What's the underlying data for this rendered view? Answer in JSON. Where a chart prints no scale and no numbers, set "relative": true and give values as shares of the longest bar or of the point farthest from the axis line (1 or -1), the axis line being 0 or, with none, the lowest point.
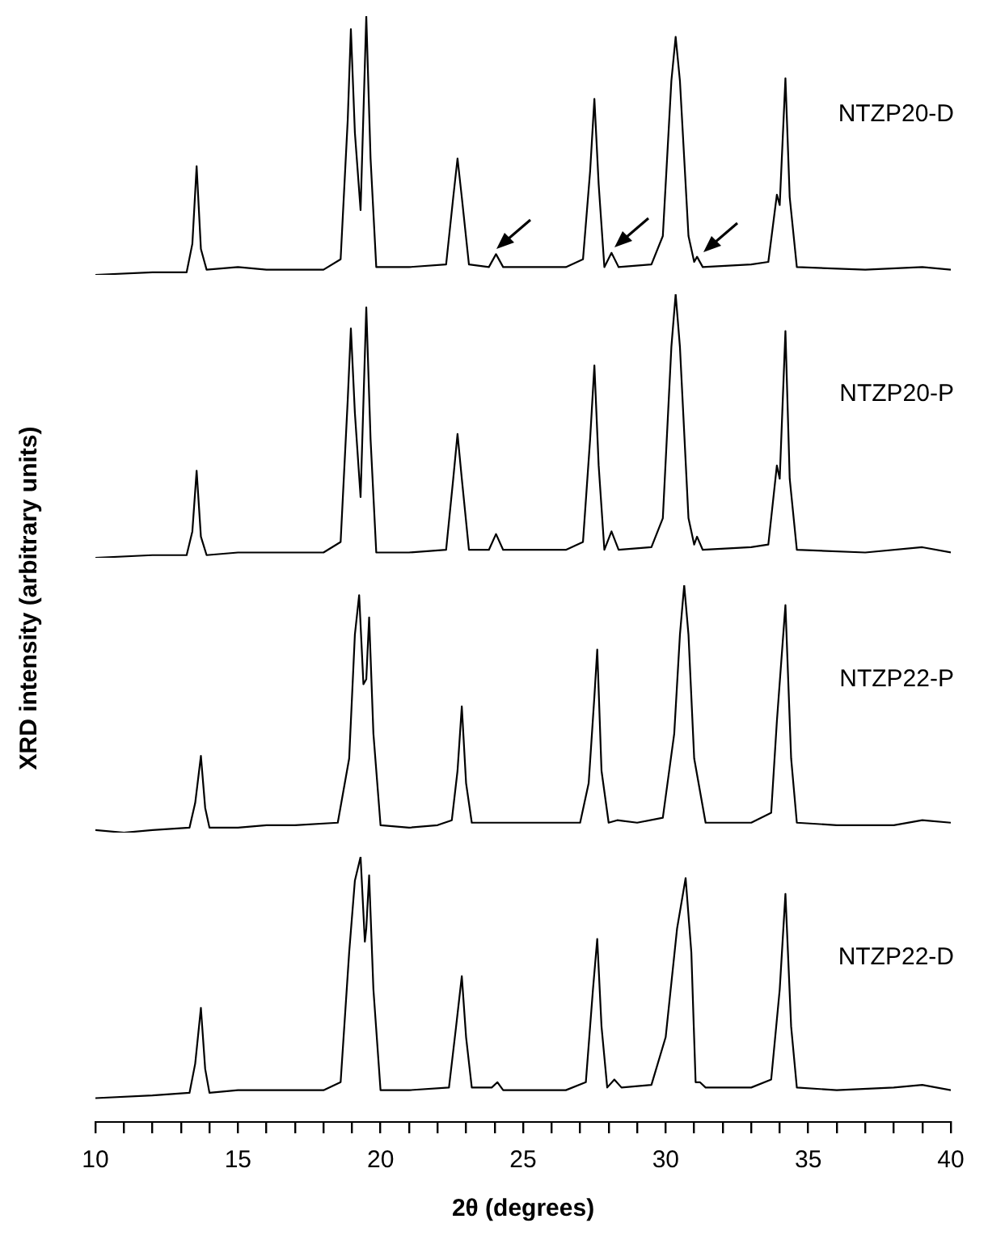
{
  "chart_data": [
    {
      "type": "line",
      "relative": true,
      "xlim": [
        10,
        40
      ],
      "tick_labels": false,
      "marker": "none",
      "series": [
        {
          "name": "NTZP20-D",
          "color": "#000000",
          "x": [
            10,
            12,
            13.2,
            13.4,
            13.55,
            13.7,
            13.9,
            15,
            16,
            18,
            18.6,
            18.85,
            18.96,
            19.1,
            19.3,
            19.5,
            19.65,
            19.85,
            21,
            22.3,
            22.55,
            22.7,
            22.85,
            23.1,
            23.8,
            24.05,
            24.3,
            26.5,
            27.1,
            27.35,
            27.5,
            27.65,
            27.85,
            28.1,
            28.35,
            29.5,
            29.9,
            30.2,
            30.35,
            30.5,
            30.8,
            31.0,
            31.1,
            31.3,
            33.0,
            33.6,
            33.9,
            34.0,
            34.2,
            34.35,
            34.6,
            37,
            39,
            40
          ],
          "values": [
            0,
            0.01,
            0.01,
            0.12,
            0.42,
            0.1,
            0.02,
            0.03,
            0.02,
            0.02,
            0.06,
            0.6,
            0.95,
            0.55,
            0.25,
            1,
            0.45,
            0.03,
            0.03,
            0.04,
            0.3,
            0.45,
            0.3,
            0.04,
            0.03,
            0.08,
            0.03,
            0.03,
            0.06,
            0.4,
            0.68,
            0.35,
            0.03,
            0.085,
            0.03,
            0.04,
            0.15,
            0.75,
            0.92,
            0.75,
            0.15,
            0.05,
            0.07,
            0.03,
            0.04,
            0.05,
            0.31,
            0.27,
            0.76,
            0.3,
            0.03,
            0.02,
            0.03,
            0.02
          ]
        }
      ]
    },
    {
      "type": "line",
      "relative": true,
      "xlim": [
        10,
        40
      ],
      "tick_labels": false,
      "marker": "none",
      "series": [
        {
          "name": "NTZP20-P",
          "color": "#000000",
          "x": [
            10,
            12,
            13.2,
            13.4,
            13.55,
            13.7,
            13.9,
            15,
            16,
            18,
            18.6,
            18.85,
            18.96,
            19.1,
            19.3,
            19.5,
            19.65,
            19.85,
            21,
            22.3,
            22.55,
            22.7,
            22.85,
            23.1,
            23.8,
            24.05,
            24.3,
            26.5,
            27.1,
            27.35,
            27.5,
            27.65,
            27.85,
            28.1,
            28.35,
            29.5,
            29.9,
            30.2,
            30.35,
            30.5,
            30.8,
            31.0,
            31.1,
            31.3,
            33.0,
            33.6,
            33.9,
            34.0,
            34.2,
            34.35,
            34.6,
            37,
            39,
            40
          ],
          "values": [
            0,
            0.01,
            0.01,
            0.1,
            0.33,
            0.08,
            0.01,
            0.02,
            0.02,
            0.02,
            0.06,
            0.6,
            0.87,
            0.55,
            0.23,
            0.95,
            0.45,
            0.02,
            0.02,
            0.03,
            0.3,
            0.47,
            0.3,
            0.03,
            0.03,
            0.09,
            0.03,
            0.03,
            0.06,
            0.45,
            0.73,
            0.35,
            0.03,
            0.1,
            0.03,
            0.04,
            0.15,
            0.8,
            1,
            0.8,
            0.15,
            0.05,
            0.08,
            0.03,
            0.04,
            0.05,
            0.35,
            0.3,
            0.86,
            0.3,
            0.03,
            0.02,
            0.04,
            0.02
          ]
        }
      ]
    },
    {
      "type": "line",
      "relative": true,
      "ylabel": "XRD intensity (arbitrary units)",
      "xlim": [
        10,
        40
      ],
      "tick_labels": false,
      "marker": "none",
      "series": [
        {
          "name": "NTZP22-P",
          "color": "#000000",
          "x": [
            10,
            11,
            12,
            13.3,
            13.5,
            13.7,
            13.85,
            14,
            15,
            16,
            17,
            18.5,
            18.9,
            19.1,
            19.25,
            19.4,
            19.5,
            19.6,
            19.75,
            20,
            21,
            22,
            22.5,
            22.7,
            22.85,
            23,
            23.2,
            24,
            25,
            26,
            27,
            27.3,
            27.5,
            27.6,
            27.75,
            28,
            28.3,
            29,
            29.9,
            30.3,
            30.5,
            30.65,
            30.8,
            31,
            31.4,
            32,
            33,
            33.7,
            33.9,
            34.2,
            34.4,
            34.6,
            36,
            38,
            39,
            40
          ],
          "values": [
            0.01,
            0,
            0.01,
            0.02,
            0.12,
            0.31,
            0.1,
            0.02,
            0.02,
            0.03,
            0.03,
            0.04,
            0.3,
            0.8,
            0.96,
            0.6,
            0.62,
            0.87,
            0.4,
            0.03,
            0.02,
            0.03,
            0.05,
            0.25,
            0.51,
            0.2,
            0.04,
            0.04,
            0.04,
            0.04,
            0.04,
            0.2,
            0.55,
            0.74,
            0.25,
            0.04,
            0.05,
            0.04,
            0.06,
            0.4,
            0.8,
            1,
            0.8,
            0.3,
            0.04,
            0.04,
            0.04,
            0.08,
            0.45,
            0.92,
            0.3,
            0.04,
            0.03,
            0.03,
            0.05,
            0.04
          ]
        }
      ]
    },
    {
      "type": "line",
      "relative": true,
      "xlim": [
        10,
        40
      ],
      "xlabel": "2θ (degrees)",
      "marker": "none",
      "xticks": [
        10,
        {
          "value": 11,
          "label": null
        },
        {
          "value": 12,
          "label": null
        },
        {
          "value": 13,
          "label": null
        },
        {
          "value": 14,
          "label": null
        },
        15,
        {
          "value": 16,
          "label": null
        },
        {
          "value": 17,
          "label": null
        },
        {
          "value": 18,
          "label": null
        },
        {
          "value": 19,
          "label": null
        },
        20,
        {
          "value": 21,
          "label": null
        },
        {
          "value": 22,
          "label": null
        },
        {
          "value": 23,
          "label": null
        },
        {
          "value": 24,
          "label": null
        },
        25,
        {
          "value": 26,
          "label": null
        },
        {
          "value": 27,
          "label": null
        },
        {
          "value": 28,
          "label": null
        },
        {
          "value": 29,
          "label": null
        },
        30,
        {
          "value": 31,
          "label": null
        },
        {
          "value": 32,
          "label": null
        },
        {
          "value": 33,
          "label": null
        },
        {
          "value": 34,
          "label": null
        },
        35,
        {
          "value": 36,
          "label": null
        },
        {
          "value": 37,
          "label": null
        },
        {
          "value": 38,
          "label": null
        },
        {
          "value": 39,
          "label": null
        },
        40
      ],
      "series": [
        {
          "name": "NTZP22-D",
          "color": "#000000",
          "x": [
            10,
            12,
            13.3,
            13.5,
            13.7,
            13.85,
            14,
            15,
            16,
            18,
            18.6,
            18.9,
            19.1,
            19.3,
            19.45,
            19.5,
            19.6,
            19.75,
            20,
            21,
            22.4,
            22.65,
            22.85,
            23,
            23.2,
            23.9,
            24.1,
            24.3,
            26.5,
            27.2,
            27.45,
            27.6,
            27.75,
            27.95,
            28.2,
            28.45,
            29.5,
            30,
            30.4,
            30.7,
            30.9,
            31.05,
            31.2,
            31.4,
            33,
            33.7,
            34,
            34.2,
            34.4,
            34.6,
            36,
            38,
            39,
            40
          ],
          "values": [
            0.09,
            0.1,
            0.11,
            0.22,
            0.43,
            0.2,
            0.11,
            0.12,
            0.12,
            0.12,
            0.15,
            0.64,
            0.91,
            1,
            0.68,
            0.73,
            0.93,
            0.5,
            0.12,
            0.12,
            0.13,
            0.36,
            0.55,
            0.32,
            0.13,
            0.13,
            0.15,
            0.12,
            0.12,
            0.15,
            0.5,
            0.69,
            0.36,
            0.13,
            0.16,
            0.13,
            0.14,
            0.32,
            0.73,
            0.92,
            0.64,
            0.15,
            0.15,
            0.13,
            0.13,
            0.16,
            0.5,
            0.86,
            0.36,
            0.13,
            0.12,
            0.13,
            0.14,
            0.12
          ]
        }
      ]
    }
  ]
}
